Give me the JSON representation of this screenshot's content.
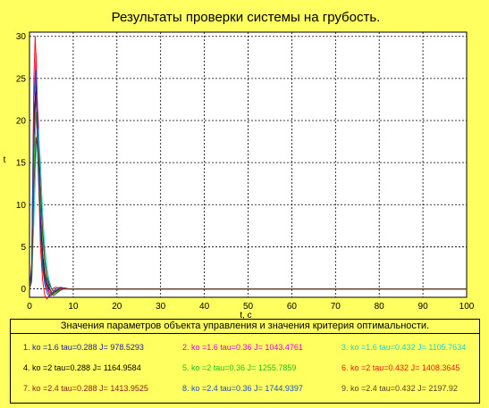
{
  "colors": {
    "background": "#ffff60",
    "plot_bg": "#ffffff",
    "grid": "#000000",
    "c1": "#1c1c9c",
    "c2": "#e000e0",
    "c3": "#20d0d0",
    "c4": "#000000",
    "c5": "#20c020",
    "c6": "#ff1010",
    "c7": "#8a2020",
    "c8": "#2050c0",
    "c9": "#604020"
  },
  "chart_data": {
    "type": "line",
    "title": "Результаты проверки системы на грубость.",
    "xlabel": "t, c",
    "ylabel": "t",
    "xlim": [
      0,
      100
    ],
    "ylim": [
      -1,
      30.5
    ],
    "xticks": [
      "0",
      "10",
      "20",
      "30",
      "40",
      "50",
      "60",
      "70",
      "80",
      "90",
      "100"
    ],
    "yticks": [
      "0",
      "5",
      "10",
      "15",
      "20",
      "25",
      "30"
    ],
    "grid": true,
    "series": [
      {
        "color_key": "c1",
        "x": [
          0,
          0.5,
          1,
          1.5,
          2,
          2.5,
          3,
          3.5,
          4,
          4.5,
          5,
          5.5,
          6,
          6.5,
          7,
          8,
          9,
          10,
          12,
          15,
          20,
          25,
          100
        ],
        "y": [
          0,
          1,
          17,
          25,
          20,
          12,
          6,
          3,
          1.5,
          0.6,
          0.1,
          -0.2,
          -0.3,
          -0.2,
          -0.1,
          0,
          0,
          0,
          0,
          0,
          0,
          0,
          0
        ]
      },
      {
        "color_key": "c2",
        "x": [
          0,
          0.5,
          1,
          1.5,
          2,
          2.5,
          3,
          3.5,
          4,
          4.5,
          5,
          5.5,
          6,
          7,
          8,
          9,
          10,
          12,
          15,
          20,
          25,
          100
        ],
        "y": [
          0,
          2,
          22,
          28,
          18,
          9,
          4,
          1.5,
          0.4,
          -0.3,
          -0.6,
          -0.4,
          -0.2,
          0,
          0.1,
          0,
          0,
          0,
          0,
          0,
          0,
          0
        ]
      },
      {
        "color_key": "c3",
        "x": [
          0,
          0.5,
          1,
          1.5,
          2,
          2.5,
          3,
          3.5,
          4,
          4.5,
          5,
          5.5,
          6,
          7,
          8,
          9,
          10,
          12,
          15,
          20,
          25,
          100
        ],
        "y": [
          0,
          0.8,
          8,
          16,
          19,
          15,
          9,
          5,
          2.5,
          1,
          0.2,
          -0.4,
          -0.5,
          -0.2,
          0,
          0,
          0,
          0,
          0,
          0,
          0,
          0
        ]
      },
      {
        "color_key": "c4",
        "x": [
          0,
          0.5,
          1,
          1.5,
          2,
          2.5,
          3,
          3.5,
          4,
          4.5,
          5,
          5.5,
          6,
          7,
          8,
          9,
          10,
          12,
          15,
          20,
          25,
          100
        ],
        "y": [
          0,
          1.5,
          20,
          24,
          15,
          8,
          4,
          1.8,
          0.6,
          0,
          -0.4,
          -0.5,
          -0.3,
          -0.1,
          0,
          0,
          0,
          0,
          0,
          0,
          0,
          0
        ]
      },
      {
        "color_key": "c5",
        "x": [
          0,
          0.5,
          1,
          1.5,
          2,
          2.5,
          3,
          3.5,
          4,
          4.5,
          5,
          5.5,
          6,
          7,
          8,
          9,
          10,
          12,
          15,
          20,
          25,
          100
        ],
        "y": [
          0,
          1.2,
          14,
          21,
          17,
          11,
          6,
          3,
          1.2,
          0.2,
          -0.4,
          -0.6,
          -0.4,
          -0.1,
          0,
          0,
          0,
          0,
          0,
          0,
          0,
          0
        ]
      },
      {
        "color_key": "c6",
        "x": [
          0,
          0.5,
          1,
          1.3,
          1.6,
          2,
          2.5,
          3,
          3.5,
          4,
          4.5,
          5,
          5.5,
          6,
          7,
          8,
          9,
          10,
          12,
          15,
          20,
          25,
          100
        ],
        "y": [
          0,
          3,
          25,
          30,
          26,
          15,
          5,
          1,
          -0.8,
          -1.2,
          -0.8,
          -0.3,
          0.1,
          0.2,
          0.1,
          0,
          0,
          0,
          0,
          0,
          0,
          0,
          0
        ]
      },
      {
        "color_key": "c7",
        "x": [
          0,
          0.5,
          1,
          1.5,
          2,
          2.5,
          3,
          3.5,
          4,
          4.5,
          5,
          5.5,
          6,
          7,
          8,
          9,
          10,
          12,
          15,
          20,
          25,
          100
        ],
        "y": [
          0,
          1.8,
          19,
          23,
          14,
          7,
          3,
          1,
          0,
          -0.6,
          -0.8,
          -0.5,
          -0.2,
          0.1,
          0.1,
          0,
          0,
          0,
          0,
          0,
          0,
          0
        ]
      },
      {
        "color_key": "c8",
        "x": [
          0,
          0.5,
          1,
          1.5,
          2,
          2.5,
          3,
          3.5,
          4,
          4.5,
          5,
          5.5,
          6,
          7,
          8,
          9,
          10,
          12,
          15,
          20,
          25,
          100
        ],
        "y": [
          0,
          2.5,
          23,
          26,
          16,
          7,
          2.5,
          0.5,
          -0.5,
          -0.9,
          -0.7,
          -0.3,
          0,
          0.2,
          0.1,
          0,
          0,
          0,
          0,
          0,
          0,
          0
        ]
      },
      {
        "color_key": "c9",
        "x": [
          0,
          0.5,
          1,
          1.5,
          2,
          2.5,
          3,
          3.5,
          4,
          4.5,
          5,
          5.5,
          6,
          7,
          8,
          9,
          10,
          12,
          15,
          20,
          25,
          100
        ],
        "y": [
          0,
          1,
          12,
          18,
          16,
          12,
          7,
          3.5,
          1.5,
          0.3,
          -0.5,
          -0.8,
          -0.6,
          -0.2,
          0.1,
          0,
          0,
          0,
          0,
          0,
          0,
          0
        ]
      }
    ]
  },
  "legend": {
    "heading": "Значения параметров объекта управления и значения критерия оптимальности.",
    "entries": [
      {
        "num": "1.",
        "text": "ko =1.6  tau=0.288  J= 978.5293",
        "color_key": "c1"
      },
      {
        "num": "2.",
        "text": "ko =1.6  tau=0.36  J= 1043.4761",
        "color_key": "c2"
      },
      {
        "num": "3.",
        "text": "ko =1.6  tau=0.432  J= 1105.7634",
        "color_key": "c3"
      },
      {
        "num": "4.",
        "text": "ko =2  tau=0.288  J= 1164.9584",
        "color_key": "c4"
      },
      {
        "num": "5.",
        "text": "ko =2  tau=0.36  J= 1255.7859",
        "color_key": "c5"
      },
      {
        "num": "6.",
        "text": "ko =2  tau=0.432  J= 1408.3645",
        "color_key": "c6"
      },
      {
        "num": "7.",
        "text": "ko =2.4  tau=0.288  J= 1413.9525",
        "color_key": "c7"
      },
      {
        "num": "8.",
        "text": "ko =2.4  tau=0.36  J= 1744.9397",
        "color_key": "c8"
      },
      {
        "num": "9.",
        "text": "ko =2.4  tau=0.432  J= 2197.92",
        "color_key": "c9"
      }
    ]
  }
}
